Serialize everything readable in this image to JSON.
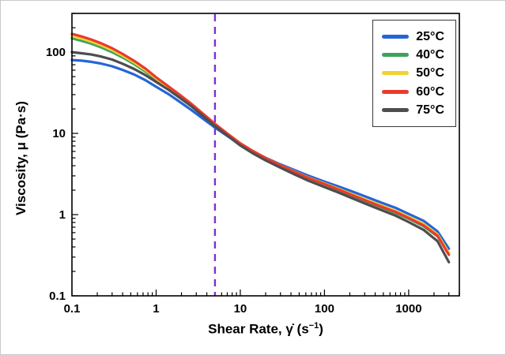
{
  "chart_data": {
    "type": "line",
    "x_scale": "log",
    "y_scale": "log",
    "xlabel_parts": {
      "prefix": "Shear Rate, γ̇ (s",
      "sup": "−1",
      "suffix": ")"
    },
    "ylabel": "Viscosity, μ (Pa·s)",
    "xlim": [
      0.1,
      4000
    ],
    "ylim": [
      0.1,
      300
    ],
    "x_ticks": [
      0.1,
      1,
      10,
      100,
      1000
    ],
    "y_ticks": [
      0.1,
      1,
      10,
      100
    ],
    "grid": false,
    "legend_position": "top-right",
    "vline": {
      "x": 5,
      "color": "#7F2ED9",
      "style": "dashed"
    },
    "x": [
      0.1,
      0.13,
      0.17,
      0.22,
      0.3,
      0.4,
      0.55,
      0.75,
      1,
      1.4,
      1.9,
      2.6,
      3.5,
      5,
      7,
      10,
      14,
      20,
      30,
      45,
      65,
      100,
      150,
      220,
      320,
      470,
      700,
      1000,
      1500,
      2200,
      3000
    ],
    "series": [
      {
        "name": "25°C",
        "color": "#2565D8",
        "values": [
          80,
          78.5,
          76,
          72.5,
          67,
          60.5,
          53,
          45,
          37.5,
          30.5,
          24.5,
          19.5,
          15.5,
          11.8,
          9.3,
          7.3,
          6,
          5,
          4.15,
          3.5,
          3,
          2.55,
          2.2,
          1.9,
          1.64,
          1.41,
          1.21,
          1.02,
          0.84,
          0.62,
          0.38
        ]
      },
      {
        "name": "40°C",
        "color": "#3EA25D",
        "values": [
          148,
          138,
          127,
          115,
          100,
          86,
          71,
          57.5,
          46,
          36,
          28.5,
          22.3,
          17.3,
          12.7,
          9.7,
          7.4,
          5.95,
          4.85,
          3.95,
          3.25,
          2.75,
          2.32,
          1.97,
          1.68,
          1.44,
          1.23,
          1.05,
          0.89,
          0.72,
          0.54,
          0.33
        ]
      },
      {
        "name": "50°C",
        "color": "#F0D232",
        "values": [
          158,
          147,
          135,
          122,
          106,
          90.5,
          74.5,
          60,
          47.5,
          37,
          29.2,
          22.8,
          17.6,
          12.9,
          9.85,
          7.5,
          6.05,
          4.95,
          4.05,
          3.35,
          2.85,
          2.42,
          2.06,
          1.76,
          1.51,
          1.3,
          1.11,
          0.94,
          0.77,
          0.57,
          0.34
        ]
      },
      {
        "name": "60°C",
        "color": "#E93A2E",
        "values": [
          168,
          156,
          143,
          129,
          112,
          95,
          78,
          62.5,
          49,
          38,
          30,
          23.3,
          17.9,
          13.1,
          9.95,
          7.55,
          6.1,
          4.98,
          4.05,
          3.33,
          2.82,
          2.38,
          2.02,
          1.72,
          1.47,
          1.26,
          1.08,
          0.91,
          0.74,
          0.55,
          0.32
        ]
      },
      {
        "name": "75°C",
        "color": "#4D4D4D",
        "values": [
          100,
          97,
          93.5,
          88.5,
          81,
          72,
          62,
          52,
          43,
          34.5,
          27.5,
          21.7,
          16.8,
          12.3,
          9.4,
          7.1,
          5.7,
          4.65,
          3.78,
          3.1,
          2.6,
          2.18,
          1.85,
          1.57,
          1.34,
          1.14,
          0.97,
          0.81,
          0.65,
          0.47,
          0.26
        ]
      }
    ]
  }
}
